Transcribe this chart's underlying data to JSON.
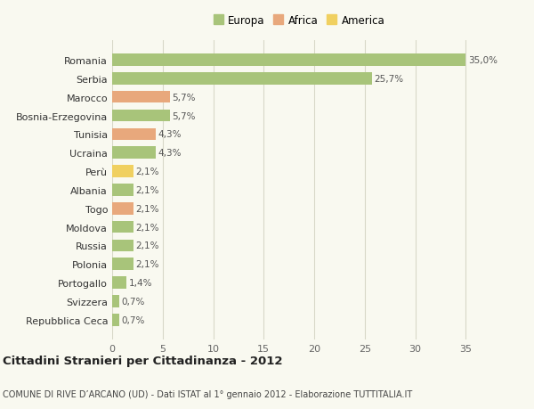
{
  "categories": [
    "Romania",
    "Serbia",
    "Marocco",
    "Bosnia-Erzegovina",
    "Tunisia",
    "Ucraina",
    "Perù",
    "Albania",
    "Togo",
    "Moldova",
    "Russia",
    "Polonia",
    "Portogallo",
    "Svizzera",
    "Repubblica Ceca"
  ],
  "values": [
    35.0,
    25.7,
    5.7,
    5.7,
    4.3,
    4.3,
    2.1,
    2.1,
    2.1,
    2.1,
    2.1,
    2.1,
    1.4,
    0.7,
    0.7
  ],
  "labels": [
    "35,0%",
    "25,7%",
    "5,7%",
    "5,7%",
    "4,3%",
    "4,3%",
    "2,1%",
    "2,1%",
    "2,1%",
    "2,1%",
    "2,1%",
    "2,1%",
    "1,4%",
    "0,7%",
    "0,7%"
  ],
  "continents": [
    "Europa",
    "Europa",
    "Africa",
    "Europa",
    "Africa",
    "Europa",
    "America",
    "Europa",
    "Africa",
    "Europa",
    "Europa",
    "Europa",
    "Europa",
    "Europa",
    "Europa"
  ],
  "colors": {
    "Europa": "#a8c47a",
    "Africa": "#e8a87c",
    "America": "#f0d060"
  },
  "title": "Cittadini Stranieri per Cittadinanza - 2012",
  "subtitle": "COMUNE DI RIVE D’ARCANO (UD) - Dati ISTAT al 1° gennaio 2012 - Elaborazione TUTTITALIA.IT",
  "xlim": [
    0,
    37
  ],
  "xticks": [
    0,
    5,
    10,
    15,
    20,
    25,
    30,
    35
  ],
  "background_color": "#f9f9f0",
  "grid_color": "#d8d8c8"
}
